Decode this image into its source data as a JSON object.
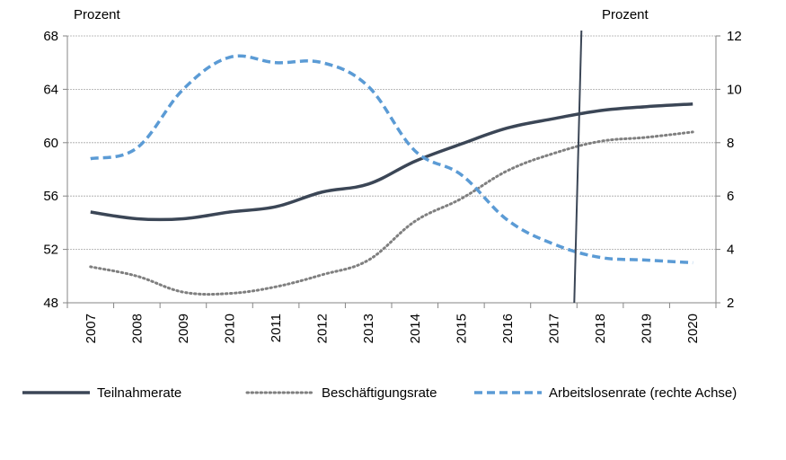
{
  "chart_data": {
    "type": "line",
    "title": "",
    "categories": [
      "2007",
      "2008",
      "2009",
      "2010",
      "2011",
      "2012",
      "2013",
      "2014",
      "2015",
      "2016",
      "2017",
      "2018",
      "2019",
      "2020"
    ],
    "left_axis": {
      "unit_label": "Prozent",
      "ylim": [
        48,
        68
      ],
      "ticks": [
        48,
        52,
        56,
        60,
        64,
        68
      ]
    },
    "right_axis": {
      "unit_label": "Prozent",
      "ylim": [
        2,
        12
      ],
      "ticks": [
        2,
        4,
        6,
        8,
        10,
        12
      ]
    },
    "grid": true,
    "forecast_marker_between": [
      "2017",
      "2018"
    ],
    "legend_position": "bottom",
    "series": [
      {
        "name": "Teilnahmerate",
        "axis": "left",
        "style": "solid",
        "color": "#3b4656",
        "values": [
          54.8,
          54.3,
          54.3,
          54.8,
          55.2,
          56.3,
          56.9,
          58.6,
          59.9,
          61.1,
          61.8,
          62.4,
          62.7,
          62.9
        ]
      },
      {
        "name": "Beschäftigungsrate",
        "axis": "left",
        "style": "dotted",
        "color": "#7f7f7f",
        "values": [
          50.7,
          50.0,
          48.8,
          48.7,
          49.2,
          50.1,
          51.2,
          54.1,
          55.8,
          57.9,
          59.2,
          60.1,
          60.4,
          60.8
        ]
      },
      {
        "name": "Arbeitslosenrate (rechte Achse)",
        "axis": "right",
        "style": "dashed",
        "color": "#5b9bd5",
        "values": [
          7.4,
          7.8,
          10.0,
          11.2,
          11.0,
          11.0,
          10.1,
          7.7,
          6.8,
          5.1,
          4.2,
          3.7,
          3.6,
          3.5
        ]
      }
    ]
  }
}
